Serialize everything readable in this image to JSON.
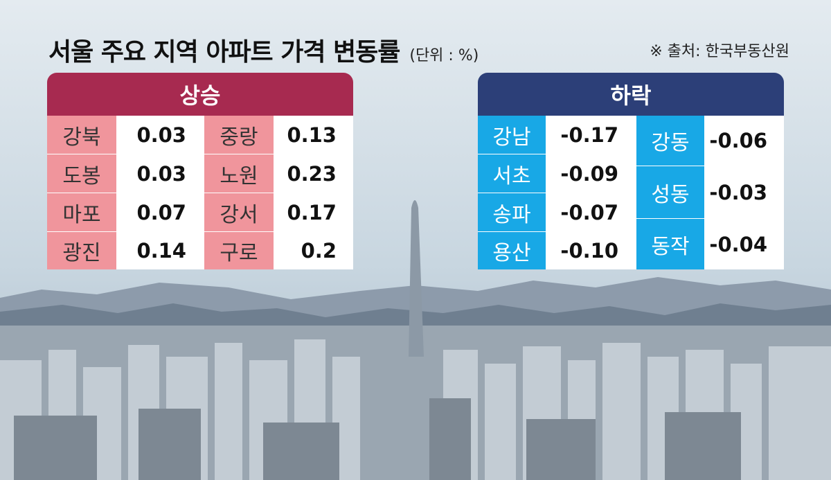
{
  "header": {
    "title": "서울 주요 지역 아파트 가격 변동률",
    "unit": "(단위 : %)",
    "source": "※ 출처: 한국부동산원"
  },
  "chart_data": [
    {
      "type": "table",
      "title": "상승",
      "rows": [
        {
          "region": "강북",
          "value": 0.03
        },
        {
          "region": "도봉",
          "value": 0.03
        },
        {
          "region": "마포",
          "value": 0.07
        },
        {
          "region": "광진",
          "value": 0.14
        },
        {
          "region": "중랑",
          "value": 0.13
        },
        {
          "region": "노원",
          "value": 0.23
        },
        {
          "region": "강서",
          "value": 0.17
        },
        {
          "region": "구로",
          "value": 0.2
        }
      ]
    },
    {
      "type": "table",
      "title": "하락",
      "rows": [
        {
          "region": "강남",
          "value": -0.17
        },
        {
          "region": "서초",
          "value": -0.09
        },
        {
          "region": "송파",
          "value": -0.07
        },
        {
          "region": "용산",
          "value": -0.1
        },
        {
          "region": "강동",
          "value": -0.06
        },
        {
          "region": "성동",
          "value": -0.03
        },
        {
          "region": "동작",
          "value": -0.04
        }
      ]
    }
  ],
  "display": {
    "rise": {
      "header": "상승",
      "rows": [
        {
          "label": "강북",
          "value": "0.03"
        },
        {
          "label": "도봉",
          "value": "0.03"
        },
        {
          "label": "마포",
          "value": "0.07"
        },
        {
          "label": "광진",
          "value": "0.14"
        },
        {
          "label": "중랑",
          "value": "0.13"
        },
        {
          "label": "노원",
          "value": "0.23"
        },
        {
          "label": "강서",
          "value": "0.17"
        },
        {
          "label": "구로",
          "value": "0.2"
        }
      ]
    },
    "fall": {
      "header": "하락",
      "rows": [
        {
          "label": "강남",
          "value": "-0.17"
        },
        {
          "label": "서초",
          "value": "-0.09"
        },
        {
          "label": "송파",
          "value": "-0.07"
        },
        {
          "label": "용산",
          "value": "-0.10"
        },
        {
          "label": "강동",
          "value": "-0.06"
        },
        {
          "label": "성동",
          "value": "-0.03"
        },
        {
          "label": "동작",
          "value": "-0.04"
        }
      ]
    }
  },
  "colors": {
    "rise_header": "#a72a50",
    "rise_label": "#f0959c",
    "fall_header": "#2c3f78",
    "fall_label": "#18a8e6",
    "sky": "#cfdbe4",
    "mountain": "#6f7f90",
    "city": "#a9b3bc"
  }
}
